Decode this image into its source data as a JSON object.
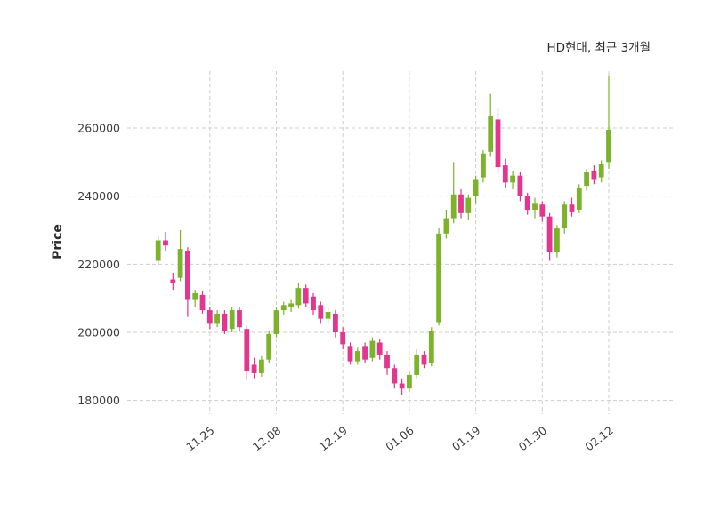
{
  "title": "HD현대, 최근 3개월",
  "colors": {
    "up": "#7db32b",
    "down": "#e2368f",
    "grid": "#cdcdcd",
    "text": "#3c3c3c",
    "background": "#ffffff"
  },
  "chart_data": {
    "type": "candlestick",
    "title": "HD현대, 최근 3개월",
    "ylabel": "Price",
    "ylim": [
      176000,
      276700
    ],
    "yticks": [
      180000,
      200000,
      220000,
      240000,
      260000
    ],
    "xticks": [
      {
        "index": 7,
        "label": "11.25"
      },
      {
        "index": 16,
        "label": "12.08"
      },
      {
        "index": 25,
        "label": "12.19"
      },
      {
        "index": 34,
        "label": "01.06"
      },
      {
        "index": 43,
        "label": "01.19"
      },
      {
        "index": 52,
        "label": "01.30"
      },
      {
        "index": 61,
        "label": "02.12"
      }
    ],
    "grid": "dashed",
    "legend": "none",
    "up_color": "#7db32b",
    "down_color": "#e2368f",
    "candles_format": [
      "open",
      "high",
      "low",
      "close"
    ],
    "candles": [
      [
        221000,
        228500,
        220000,
        227000
      ],
      [
        227000,
        229500,
        224000,
        225500
      ],
      [
        215500,
        217500,
        212500,
        214500
      ],
      [
        216000,
        230000,
        215000,
        224500
      ],
      [
        224000,
        225000,
        204500,
        209500
      ],
      [
        209500,
        212500,
        207500,
        211500
      ],
      [
        211000,
        212000,
        205500,
        206500
      ],
      [
        206500,
        207500,
        201000,
        202500
      ],
      [
        202500,
        206500,
        201500,
        205500
      ],
      [
        205500,
        206500,
        199500,
        200500
      ],
      [
        201000,
        207500,
        200000,
        206500
      ],
      [
        206500,
        207500,
        200500,
        201500
      ],
      [
        201000,
        202000,
        186000,
        188500
      ],
      [
        190500,
        192500,
        186500,
        188000
      ],
      [
        188000,
        193000,
        187000,
        192000
      ],
      [
        192000,
        200500,
        191000,
        199500
      ],
      [
        199500,
        207500,
        198500,
        206500
      ],
      [
        206500,
        209000,
        205000,
        208000
      ],
      [
        207500,
        209500,
        206000,
        208500
      ],
      [
        208000,
        214500,
        207000,
        213000
      ],
      [
        213000,
        214000,
        207500,
        208500
      ],
      [
        210500,
        211500,
        205000,
        206500
      ],
      [
        208000,
        209000,
        202500,
        204000
      ],
      [
        204000,
        207000,
        202500,
        206000
      ],
      [
        205500,
        206500,
        198500,
        200000
      ],
      [
        200000,
        201500,
        195000,
        196500
      ],
      [
        196000,
        197000,
        190500,
        191500
      ],
      [
        191500,
        195500,
        190500,
        194500
      ],
      [
        196000,
        197000,
        191000,
        192000
      ],
      [
        192500,
        198500,
        191500,
        197500
      ],
      [
        197000,
        198000,
        192000,
        193500
      ],
      [
        193500,
        194500,
        187500,
        189500
      ],
      [
        189500,
        190500,
        183500,
        185000
      ],
      [
        185000,
        186500,
        181500,
        183500
      ],
      [
        183500,
        188500,
        182500,
        187500
      ],
      [
        187500,
        195000,
        186500,
        193500
      ],
      [
        193500,
        194500,
        189500,
        190500
      ],
      [
        191000,
        201500,
        190000,
        200500
      ],
      [
        203000,
        230500,
        202000,
        229000
      ],
      [
        229000,
        236000,
        227500,
        233500
      ],
      [
        233500,
        250000,
        232000,
        240500
      ],
      [
        240500,
        242000,
        233500,
        235000
      ],
      [
        235000,
        240500,
        233000,
        239500
      ],
      [
        240000,
        246000,
        238000,
        245000
      ],
      [
        245500,
        253500,
        244000,
        252500
      ],
      [
        253000,
        270000,
        251500,
        263500
      ],
      [
        262500,
        266000,
        246500,
        248500
      ],
      [
        249000,
        251000,
        242500,
        244000
      ],
      [
        244000,
        247500,
        242000,
        246000
      ],
      [
        246000,
        247000,
        238500,
        240000
      ],
      [
        240000,
        241000,
        234500,
        236000
      ],
      [
        236000,
        239500,
        233500,
        238000
      ],
      [
        237500,
        238500,
        232500,
        234000
      ],
      [
        234000,
        235000,
        221000,
        223500
      ],
      [
        223500,
        231500,
        222000,
        230500
      ],
      [
        230500,
        238500,
        229000,
        237500
      ],
      [
        237500,
        239500,
        234000,
        235500
      ],
      [
        236000,
        243500,
        235000,
        242500
      ],
      [
        243000,
        248000,
        241500,
        247000
      ],
      [
        247500,
        249000,
        243500,
        245000
      ],
      [
        245500,
        250500,
        244000,
        249500
      ],
      [
        250000,
        275500,
        248000,
        259500
      ]
    ]
  }
}
